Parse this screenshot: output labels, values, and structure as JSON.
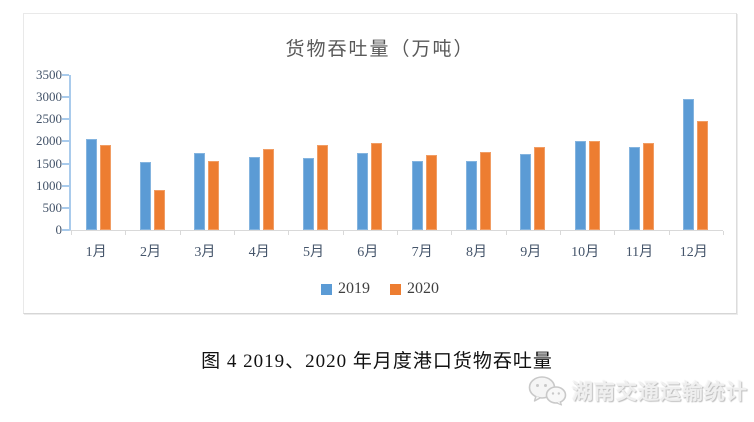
{
  "chart_data": {
    "type": "bar",
    "title": "货物吞吐量（万吨）",
    "categories": [
      "1月",
      "2月",
      "3月",
      "4月",
      "5月",
      "6月",
      "7月",
      "8月",
      "9月",
      "10月",
      "11月",
      "12月"
    ],
    "series": [
      {
        "name": "2019",
        "color": "#5B9BD5",
        "values": [
          2060,
          1530,
          1730,
          1640,
          1620,
          1730,
          1550,
          1550,
          1710,
          2020,
          1870,
          2950
        ]
      },
      {
        "name": "2020",
        "color": "#ED7D31",
        "values": [
          1910,
          900,
          1550,
          1830,
          1910,
          1970,
          1690,
          1760,
          1880,
          2000,
          1970,
          2470
        ]
      }
    ],
    "ylim": [
      0,
      3500
    ],
    "ytick_step": 500,
    "grid": false,
    "legend_position": "bottom",
    "axis_label_color": "#44546A",
    "title_color": "#595959"
  },
  "caption": {
    "text": "图 4  2019、2020 年月度港口货物吞吐量"
  },
  "watermark": {
    "icon": "wechat-icon",
    "text": "湖南交通运输统计"
  }
}
